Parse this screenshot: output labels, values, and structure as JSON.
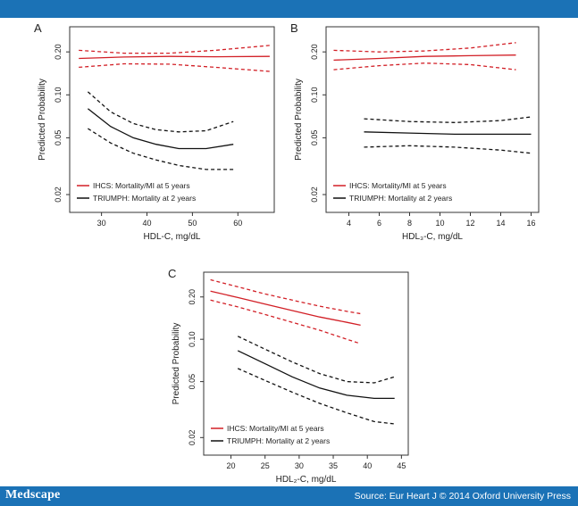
{
  "footer": {
    "logo": "Medscape",
    "source": "Source: Eur Heart J © 2014 Oxford University Press"
  },
  "colors": {
    "ihcs": "#d21f26",
    "triumph": "#111111",
    "brand_bar": "#1b72b6"
  },
  "chart_data": [
    {
      "panel": "A",
      "type": "line",
      "xlabel": "HDL-C, mg/dL",
      "ylabel": "Predicted Probability",
      "y_scale": "log",
      "xlim": [
        23,
        68
      ],
      "ylim": [
        0.015,
        0.3
      ],
      "xticks": [
        30,
        40,
        50,
        60
      ],
      "yticks": [
        0.02,
        0.05,
        0.1,
        0.2
      ],
      "ytick_labels": [
        "0.02",
        "0.05",
        "0.10",
        "0.20"
      ],
      "legend_position": "bottom-left",
      "series": [
        {
          "name": "IHCS: Mortality/MI at 5 years",
          "color": "#d21f26",
          "style": "solid",
          "x": [
            25,
            35,
            45,
            55,
            67
          ],
          "y": [
            0.18,
            0.184,
            0.186,
            0.185,
            0.186
          ]
        },
        {
          "name": "IHCS upper CI",
          "color": "#d21f26",
          "style": "dashed",
          "x": [
            25,
            35,
            45,
            55,
            67
          ],
          "y": [
            0.205,
            0.196,
            0.196,
            0.205,
            0.222
          ]
        },
        {
          "name": "IHCS lower CI",
          "color": "#d21f26",
          "style": "dashed",
          "x": [
            25,
            35,
            45,
            55,
            67
          ],
          "y": [
            0.156,
            0.165,
            0.164,
            0.156,
            0.146
          ]
        },
        {
          "name": "TRIUMPH: Mortality at 2 years",
          "color": "#111111",
          "style": "solid",
          "x": [
            27,
            32,
            37,
            42,
            47,
            53,
            59
          ],
          "y": [
            0.08,
            0.06,
            0.05,
            0.045,
            0.042,
            0.042,
            0.045
          ]
        },
        {
          "name": "TRIUMPH upper CI",
          "color": "#111111",
          "style": "dashed",
          "x": [
            27,
            32,
            37,
            42,
            47,
            53,
            59
          ],
          "y": [
            0.105,
            0.076,
            0.063,
            0.057,
            0.055,
            0.056,
            0.065
          ]
        },
        {
          "name": "TRIUMPH lower CI",
          "color": "#111111",
          "style": "dashed",
          "x": [
            27,
            32,
            37,
            42,
            47,
            53,
            59
          ],
          "y": [
            0.058,
            0.046,
            0.039,
            0.035,
            0.032,
            0.03,
            0.03
          ]
        }
      ],
      "legend": [
        {
          "label": "IHCS: Mortality/MI at 5 years",
          "color": "#d21f26"
        },
        {
          "label": "TRIUMPH: Mortality at 2 years",
          "color": "#111111"
        }
      ]
    },
    {
      "panel": "B",
      "type": "line",
      "xlabel": "HDL₃-C, mg/dL",
      "ylabel": "Predicted Probability",
      "y_scale": "log",
      "xlim": [
        2.5,
        16.5
      ],
      "ylim": [
        0.015,
        0.3
      ],
      "xticks": [
        4,
        6,
        8,
        10,
        12,
        14,
        16
      ],
      "yticks": [
        0.02,
        0.05,
        0.1,
        0.2
      ],
      "ytick_labels": [
        "0.02",
        "0.05",
        "0.10",
        "0.20"
      ],
      "legend_position": "bottom-left",
      "series": [
        {
          "name": "IHCS: Mortality/MI at 5 years",
          "color": "#d21f26",
          "style": "solid",
          "x": [
            3,
            6,
            9,
            12,
            15
          ],
          "y": [
            0.175,
            0.18,
            0.186,
            0.188,
            0.19
          ]
        },
        {
          "name": "IHCS upper CI",
          "color": "#d21f26",
          "style": "dashed",
          "x": [
            3,
            6,
            9,
            12,
            15
          ],
          "y": [
            0.205,
            0.2,
            0.203,
            0.213,
            0.232
          ]
        },
        {
          "name": "IHCS lower CI",
          "color": "#d21f26",
          "style": "dashed",
          "x": [
            3,
            6,
            9,
            12,
            15
          ],
          "y": [
            0.15,
            0.16,
            0.167,
            0.163,
            0.15
          ]
        },
        {
          "name": "TRIUMPH: Mortality at 2 years",
          "color": "#111111",
          "style": "solid",
          "x": [
            5,
            8,
            11,
            14,
            16
          ],
          "y": [
            0.055,
            0.054,
            0.053,
            0.053,
            0.053
          ]
        },
        {
          "name": "TRIUMPH upper CI",
          "color": "#111111",
          "style": "dashed",
          "x": [
            5,
            8,
            11,
            14,
            16
          ],
          "y": [
            0.068,
            0.065,
            0.064,
            0.066,
            0.07
          ]
        },
        {
          "name": "TRIUMPH lower CI",
          "color": "#111111",
          "style": "dashed",
          "x": [
            5,
            8,
            11,
            14,
            16
          ],
          "y": [
            0.043,
            0.044,
            0.043,
            0.041,
            0.039
          ]
        }
      ],
      "legend": [
        {
          "label": "IHCS: Mortality/MI at 5 years",
          "color": "#d21f26"
        },
        {
          "label": "TRIUMPH: Mortality at 2 years",
          "color": "#111111"
        }
      ]
    },
    {
      "panel": "C",
      "type": "line",
      "xlabel": "HDL₂-C, mg/dL",
      "ylabel": "Predicted Probability",
      "y_scale": "log",
      "xlim": [
        16,
        46
      ],
      "ylim": [
        0.015,
        0.3
      ],
      "xticks": [
        20,
        25,
        30,
        35,
        40,
        45
      ],
      "yticks": [
        0.02,
        0.05,
        0.1,
        0.2
      ],
      "ytick_labels": [
        "0.02",
        "0.05",
        "0.10",
        "0.20"
      ],
      "legend_position": "bottom-left",
      "series": [
        {
          "name": "IHCS: Mortality/MI at 5 years",
          "color": "#d21f26",
          "style": "solid",
          "x": [
            17,
            21,
            25,
            29,
            33,
            37,
            39
          ],
          "y": [
            0.22,
            0.198,
            0.178,
            0.16,
            0.144,
            0.132,
            0.126
          ]
        },
        {
          "name": "IHCS upper CI",
          "color": "#d21f26",
          "style": "dashed",
          "x": [
            17,
            21,
            25,
            29,
            33,
            37,
            39
          ],
          "y": [
            0.265,
            0.236,
            0.21,
            0.19,
            0.172,
            0.158,
            0.152
          ]
        },
        {
          "name": "IHCS lower CI",
          "color": "#d21f26",
          "style": "dashed",
          "x": [
            17,
            21,
            25,
            29,
            33,
            37,
            39
          ],
          "y": [
            0.19,
            0.17,
            0.15,
            0.132,
            0.116,
            0.1,
            0.093
          ]
        },
        {
          "name": "TRIUMPH: Mortality at 2 years",
          "color": "#111111",
          "style": "solid",
          "x": [
            21,
            25,
            29,
            33,
            37,
            41,
            44
          ],
          "y": [
            0.083,
            0.067,
            0.054,
            0.045,
            0.04,
            0.038,
            0.038
          ]
        },
        {
          "name": "TRIUMPH upper CI",
          "color": "#111111",
          "style": "dashed",
          "x": [
            21,
            25,
            29,
            33,
            37,
            41,
            44
          ],
          "y": [
            0.105,
            0.085,
            0.069,
            0.057,
            0.05,
            0.049,
            0.054
          ]
        },
        {
          "name": "TRIUMPH lower CI",
          "color": "#111111",
          "style": "dashed",
          "x": [
            21,
            25,
            29,
            33,
            37,
            41,
            44
          ],
          "y": [
            0.062,
            0.051,
            0.042,
            0.035,
            0.03,
            0.026,
            0.025
          ]
        }
      ],
      "legend": [
        {
          "label": "IHCS: Mortality/MI at 5 years",
          "color": "#d21f26"
        },
        {
          "label": "TRIUMPH: Mortality at 2 years",
          "color": "#111111"
        }
      ]
    }
  ]
}
